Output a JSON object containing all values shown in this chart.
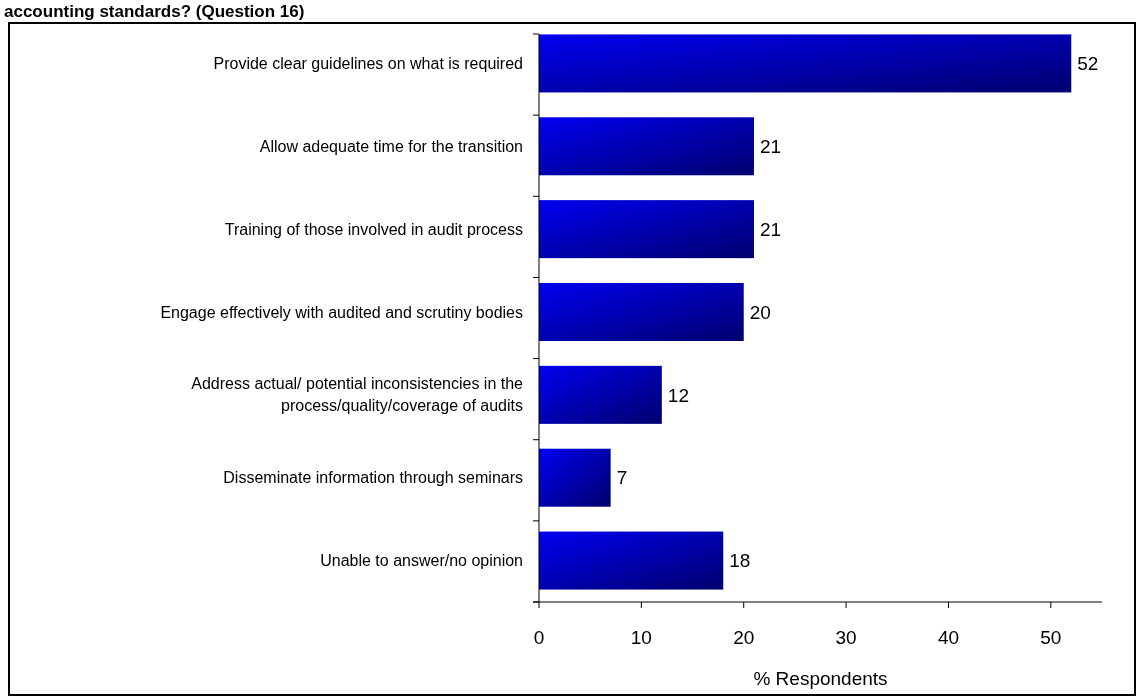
{
  "chart_data": {
    "type": "bar",
    "orientation": "horizontal",
    "title": "accounting standards? (Question 16)",
    "xlabel": "% Respondents",
    "categories": [
      "Provide clear guidelines on what is required",
      "Allow adequate time for the transition",
      "Training of those involved in audit process",
      "Engage effectively with audited and scrutiny bodies",
      "Address actual/ potential inconsistencies in the process/quality/coverage of audits",
      "Disseminate information through seminars",
      "Unable to answer/no opinion"
    ],
    "values": [
      52,
      21,
      21,
      20,
      12,
      7,
      18
    ],
    "color": "#0000f0",
    "data_labels": true,
    "xlim": [
      0,
      55
    ],
    "xticks": [
      0,
      10,
      20,
      30,
      40,
      50
    ],
    "grid": false
  }
}
